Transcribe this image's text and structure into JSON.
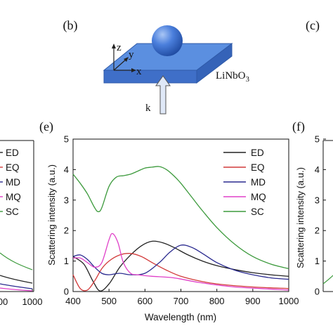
{
  "panel_labels": {
    "b": "(b)",
    "c": "(c)",
    "e": "(e)",
    "f": "(f)"
  },
  "schematic": {
    "substrate_label": "LiNbO",
    "substrate_subscript": "3",
    "axis_z": "z",
    "axis_y": "y",
    "axis_x": "x",
    "wavevector": "k",
    "colors": {
      "slab_top": "#5b8fe0",
      "slab_front": "#3f6fc8",
      "sphere": "#3b6fd0",
      "arrow": "#dfe8f7"
    }
  },
  "left_partial": {
    "legend_labels": [
      "ED",
      "EQ",
      "MD",
      "MQ",
      "SC"
    ],
    "x_ticks": [
      "00",
      "1000"
    ]
  },
  "right_partial": {
    "ylabel": "Scattering intensity (a.u.)",
    "y_ticks": [
      "0",
      "1",
      "2",
      "3",
      "4",
      "5"
    ]
  },
  "chart_data": {
    "type": "line",
    "title": "",
    "xlabel": "Wavelength (nm)",
    "ylabel": "Scattering intensity (a.u.)",
    "xlim": [
      400,
      1000
    ],
    "ylim": [
      0,
      5
    ],
    "x_ticks": [
      400,
      500,
      600,
      700,
      800,
      900,
      1000
    ],
    "y_ticks": [
      0,
      1,
      2,
      3,
      4,
      5
    ],
    "legend_position": "top-right",
    "grid": false,
    "series": [
      {
        "name": "ED",
        "color": "#222222",
        "x": [
          400,
          430,
          455,
          475,
          500,
          530,
          560,
          590,
          620,
          650,
          680,
          720,
          760,
          800,
          850,
          900,
          950,
          1000
        ],
        "y": [
          1.15,
          0.9,
          0.35,
          0.02,
          0.25,
          0.8,
          1.2,
          1.5,
          1.65,
          1.6,
          1.45,
          1.2,
          1.0,
          0.85,
          0.72,
          0.62,
          0.55,
          0.5
        ]
      },
      {
        "name": "EQ",
        "color": "#d23a3a",
        "x": [
          400,
          420,
          440,
          460,
          480,
          500,
          530,
          560,
          590,
          620,
          660,
          700,
          750,
          800,
          900,
          1000
        ],
        "y": [
          0.55,
          0.1,
          0.05,
          0.35,
          0.75,
          1.0,
          1.2,
          1.25,
          1.15,
          0.95,
          0.7,
          0.5,
          0.35,
          0.25,
          0.15,
          0.1
        ]
      },
      {
        "name": "MD",
        "color": "#2a2a8f",
        "x": [
          400,
          420,
          440,
          460,
          480,
          500,
          530,
          560,
          600,
          640,
          670,
          700,
          730,
          760,
          800,
          850,
          900,
          950,
          1000
        ],
        "y": [
          1.15,
          1.2,
          1.05,
          0.8,
          0.6,
          0.55,
          0.6,
          0.55,
          0.6,
          0.95,
          1.3,
          1.52,
          1.45,
          1.25,
          0.95,
          0.7,
          0.55,
          0.45,
          0.4
        ]
      },
      {
        "name": "MQ",
        "color": "#e040c8",
        "x": [
          400,
          420,
          440,
          460,
          480,
          500,
          510,
          525,
          540,
          560,
          580,
          620,
          680,
          750,
          850,
          1000
        ],
        "y": [
          1.1,
          1.1,
          0.95,
          0.8,
          0.95,
          1.7,
          1.9,
          1.6,
          0.95,
          0.6,
          0.55,
          0.5,
          0.45,
          0.3,
          0.15,
          0.05
        ]
      },
      {
        "name": "SC",
        "color": "#3c9a3c",
        "x": [
          400,
          420,
          440,
          460,
          470,
          480,
          500,
          520,
          540,
          560,
          580,
          600,
          620,
          640,
          660,
          680,
          700,
          730,
          760,
          800,
          850,
          900,
          950,
          1000
        ],
        "y": [
          3.85,
          3.55,
          3.2,
          2.75,
          2.62,
          2.75,
          3.45,
          3.75,
          3.8,
          3.85,
          3.95,
          4.05,
          4.08,
          4.1,
          4.0,
          3.8,
          3.55,
          3.1,
          2.65,
          2.1,
          1.55,
          1.15,
          0.9,
          0.75
        ]
      }
    ]
  }
}
